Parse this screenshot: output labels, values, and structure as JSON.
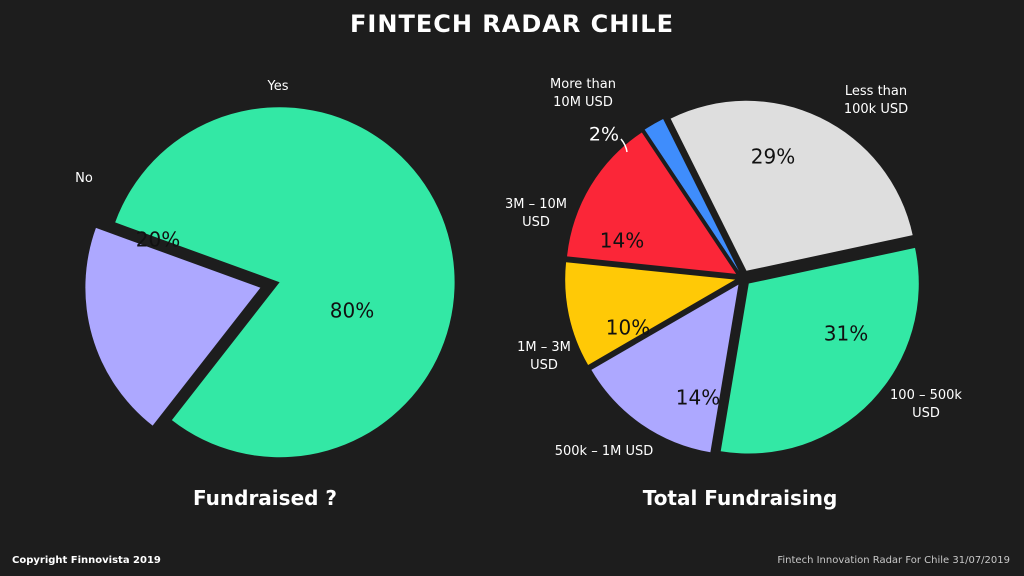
{
  "title": "FINTECH RADAR CHILE",
  "footer": {
    "copyright": "Copyright Finnovista 2019",
    "source": "Fintech Innovation Radar For Chile 31/07/2019"
  },
  "chart_data": [
    {
      "type": "pie",
      "title": "Fundraised ?",
      "slices": [
        {
          "label": "Yes",
          "value": 80,
          "value_label": "80%",
          "color": "#33e8a5"
        },
        {
          "label": "No",
          "value": 20,
          "value_label": "20%",
          "color": "#ada8ff"
        }
      ]
    },
    {
      "type": "pie",
      "title": "Total Fundraising",
      "slices": [
        {
          "label": "Less than\n100k USD",
          "value": 29,
          "value_label": "29%",
          "color": "#dedede"
        },
        {
          "label": "100 – 500k\nUSD",
          "value": 31,
          "value_label": "31%",
          "color": "#33e8a5"
        },
        {
          "label": "500k – 1M USD",
          "value": 14,
          "value_label": "14%",
          "color": "#ada8ff"
        },
        {
          "label": "1M – 3M\nUSD",
          "value": 10,
          "value_label": "10%",
          "color": "#ffc906"
        },
        {
          "label": "3M – 10M\nUSD",
          "value": 14,
          "value_label": "14%",
          "color": "#fb2638"
        },
        {
          "label": "More than\n10M USD",
          "value": 2,
          "value_label": "2%",
          "color": "#3f8dfc"
        }
      ]
    }
  ]
}
